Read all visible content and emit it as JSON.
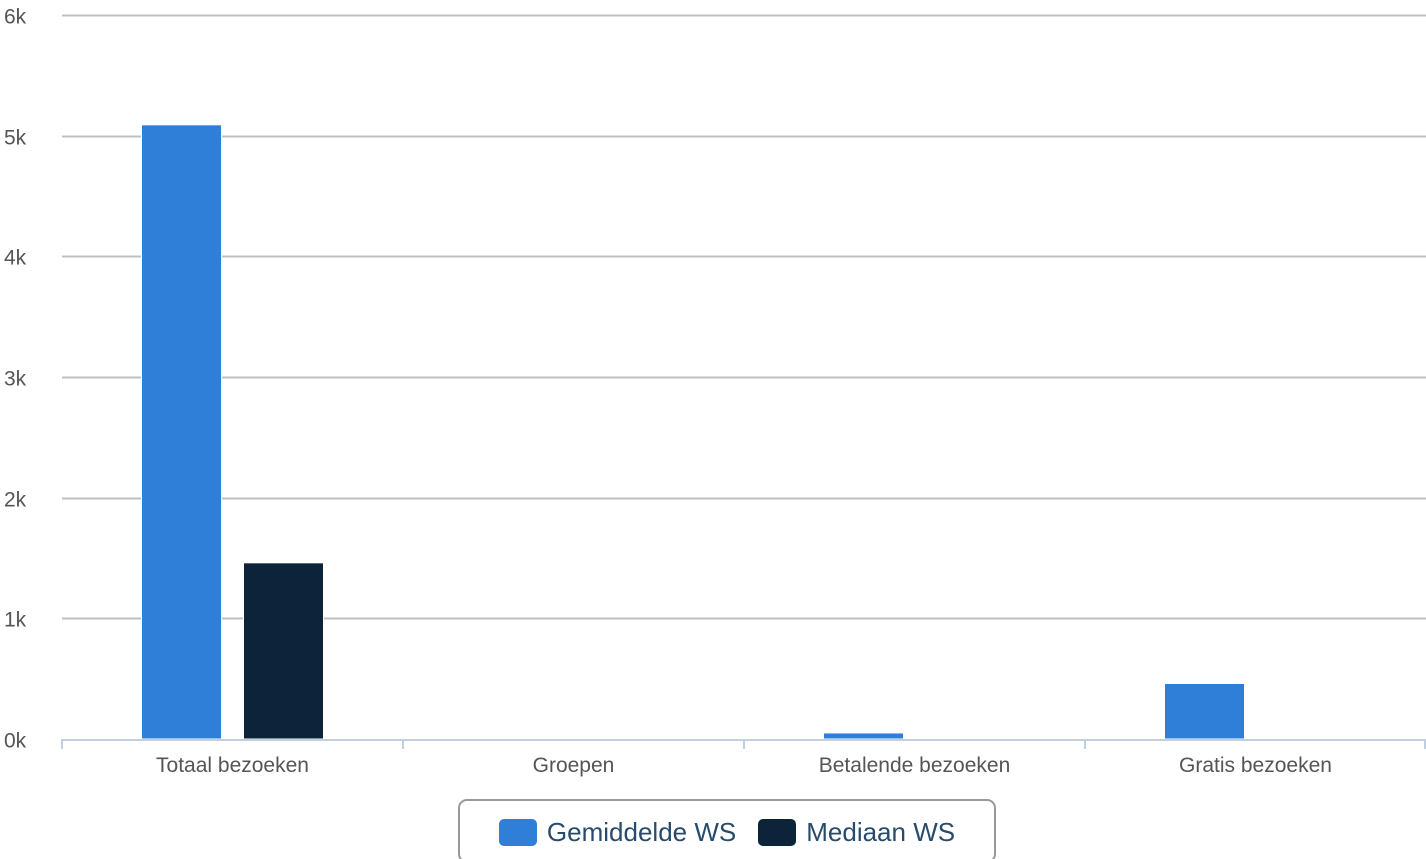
{
  "colors": {
    "series_0": "#2f7ed8",
    "series_1": "#0d233a",
    "gridline": "#c0c0c0",
    "axis_line": "#c0d0e0",
    "tick_text": "#555555",
    "legend_text": "#274b6d",
    "legend_border": "#999999"
  },
  "chart_data": {
    "type": "bar",
    "title": "",
    "xlabel": "",
    "ylabel": "",
    "categories": [
      "Totaal bezoeken",
      "Groepen",
      "Betalende bezoeken",
      "Gratis bezoeken"
    ],
    "series": [
      {
        "name": "Gemiddelde WS",
        "values": [
          5090,
          0,
          50,
          460
        ]
      },
      {
        "name": "Mediaan WS",
        "values": [
          1460,
          0,
          0,
          0
        ]
      }
    ],
    "ylim": [
      0,
      6000
    ],
    "y_ticks": [
      {
        "value": 0,
        "label": "0k"
      },
      {
        "value": 1000,
        "label": "1k"
      },
      {
        "value": 2000,
        "label": "2k"
      },
      {
        "value": 3000,
        "label": "3k"
      },
      {
        "value": 4000,
        "label": "4k"
      },
      {
        "value": 5000,
        "label": "5k"
      },
      {
        "value": 6000,
        "label": "6k"
      }
    ],
    "grid": true,
    "legend_position": "bottom-center"
  },
  "legend": {
    "items": [
      {
        "label": "Gemiddelde WS",
        "color_key": "series_0"
      },
      {
        "label": "Mediaan WS",
        "color_key": "series_1"
      }
    ]
  }
}
